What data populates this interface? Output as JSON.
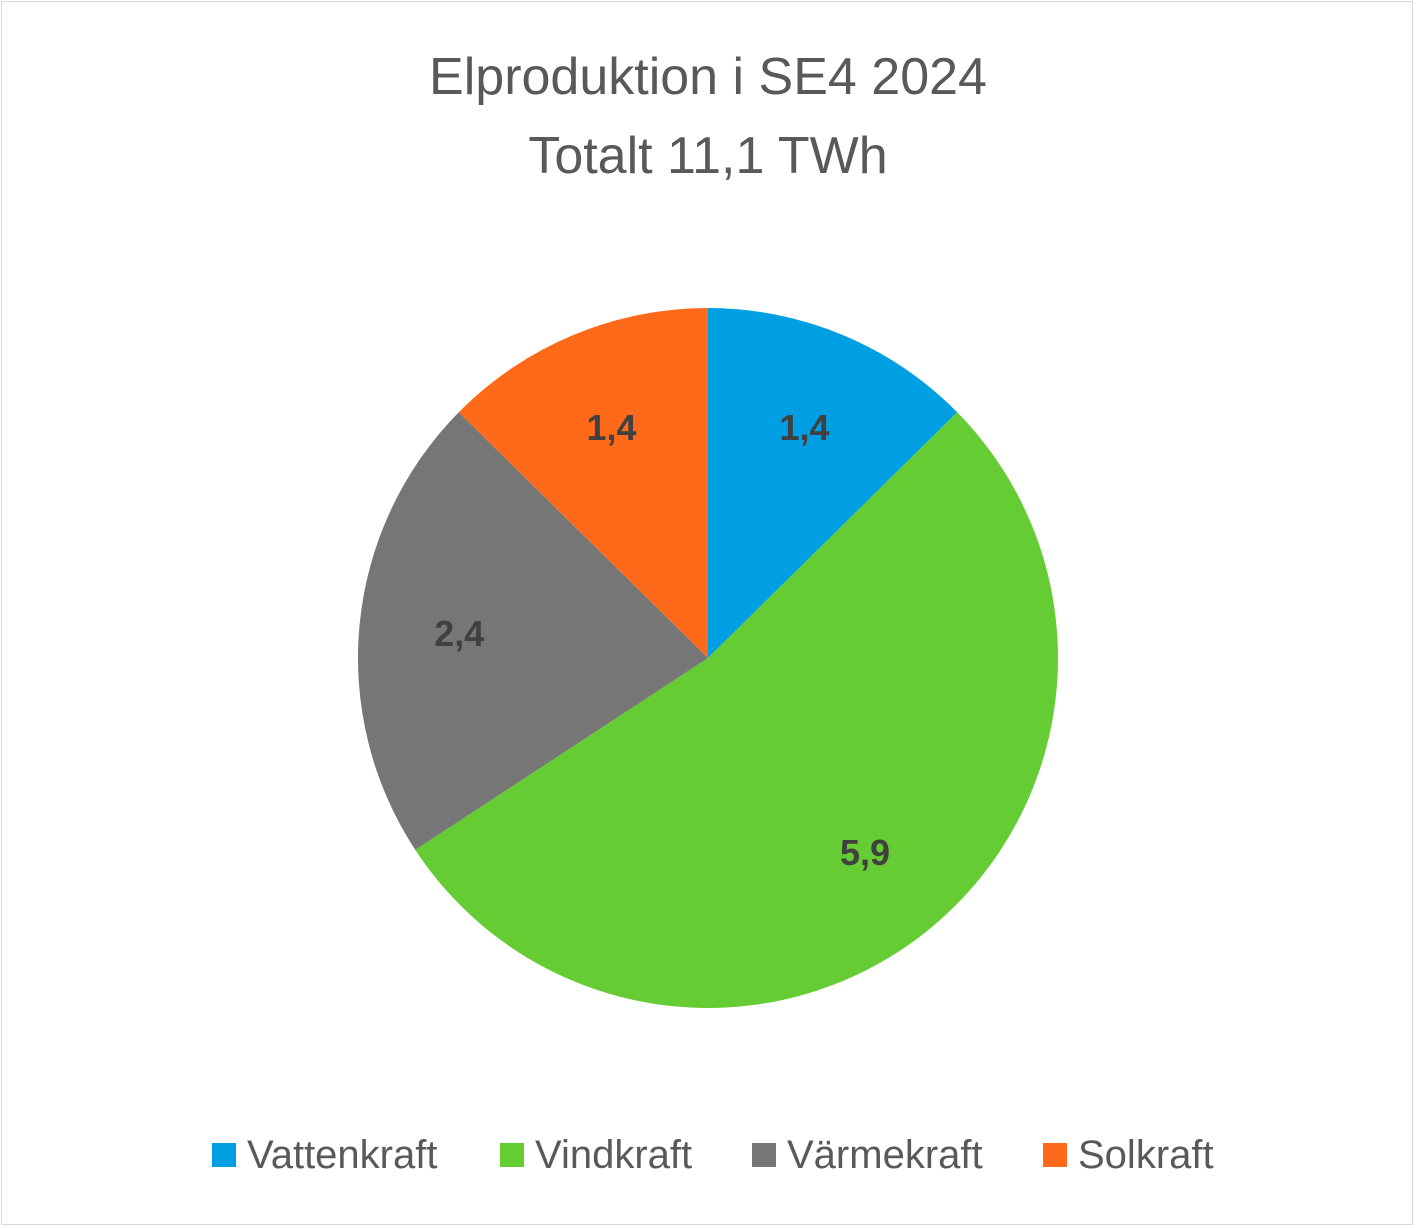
{
  "chart_data": {
    "type": "pie",
    "title": "Elproduktion i SE4 2024",
    "subtitle": "Totalt 11,1 TWh",
    "categories": [
      "Vattenkraft",
      "Vindkraft",
      "Värmekraft",
      "Solkraft"
    ],
    "values": [
      1.4,
      5.9,
      2.4,
      1.4
    ],
    "value_labels": [
      "1,4",
      "5,9",
      "2,4",
      "1,4"
    ],
    "colors": [
      "#009fe3",
      "#66cc33",
      "#767676",
      "#ff6a1a"
    ],
    "legend_position": "bottom",
    "start_angle": "12 o'clock",
    "direction": "clockwise"
  }
}
